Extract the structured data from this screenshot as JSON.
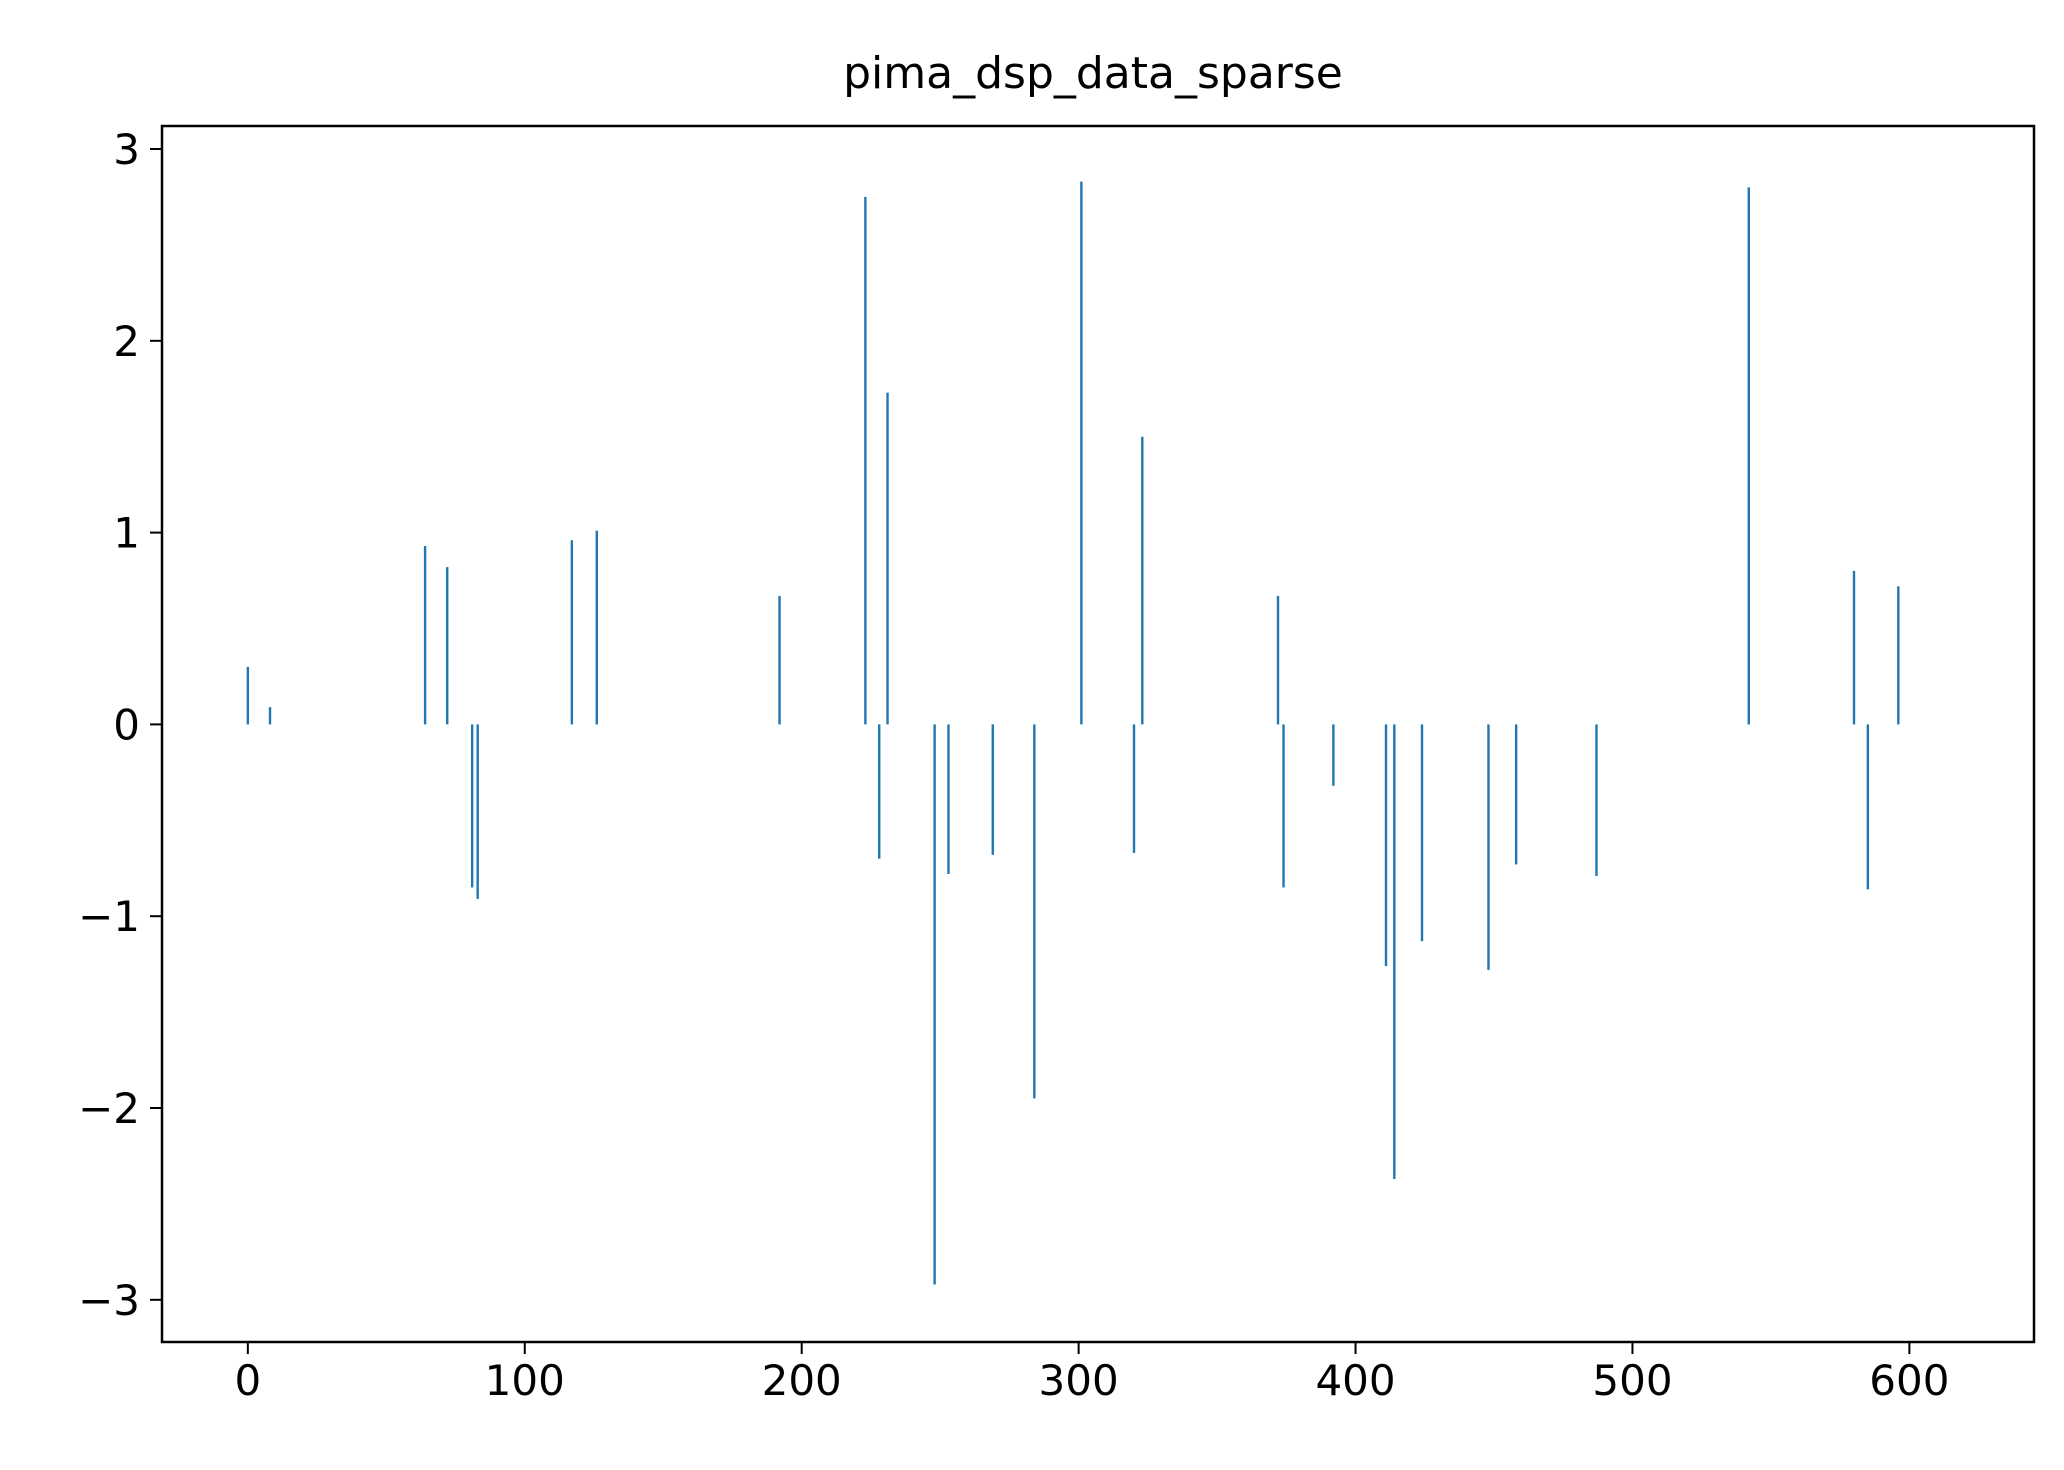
{
  "chart_data": {
    "type": "bar",
    "title": "pima_dsp_data_sparse",
    "xlabel": "",
    "ylabel": "",
    "xlim": [
      -31,
      645
    ],
    "ylim": [
      -3.22,
      3.12
    ],
    "xticks": [
      0,
      100,
      200,
      300,
      400,
      500,
      600
    ],
    "xtick_labels": [
      "0",
      "100",
      "200",
      "300",
      "400",
      "500",
      "600"
    ],
    "yticks": [
      3,
      2,
      1,
      0,
      -1,
      -2,
      -3
    ],
    "ytick_labels": [
      "3",
      "2",
      "1",
      "0",
      "−1",
      "−2",
      "−3"
    ],
    "grid": false,
    "legend": "none",
    "bar_color": "#1f77b4",
    "x": [
      0,
      8,
      64,
      72,
      81,
      83,
      117,
      126,
      192,
      223,
      228,
      231,
      248,
      253,
      269,
      284,
      301,
      320,
      323,
      372,
      374,
      392,
      411,
      414,
      424,
      448,
      458,
      487,
      542,
      580,
      585,
      596
    ],
    "values": [
      0.3,
      0.09,
      0.93,
      0.82,
      -0.85,
      -0.91,
      0.96,
      1.01,
      0.67,
      2.75,
      -0.7,
      1.73,
      -2.92,
      -0.78,
      -0.68,
      -1.95,
      2.83,
      -0.67,
      1.5,
      0.67,
      -0.85,
      -0.32,
      -1.26,
      -2.37,
      -1.13,
      -1.28,
      -0.73,
      -0.79,
      2.8,
      0.8,
      -0.86,
      0.72
    ]
  }
}
